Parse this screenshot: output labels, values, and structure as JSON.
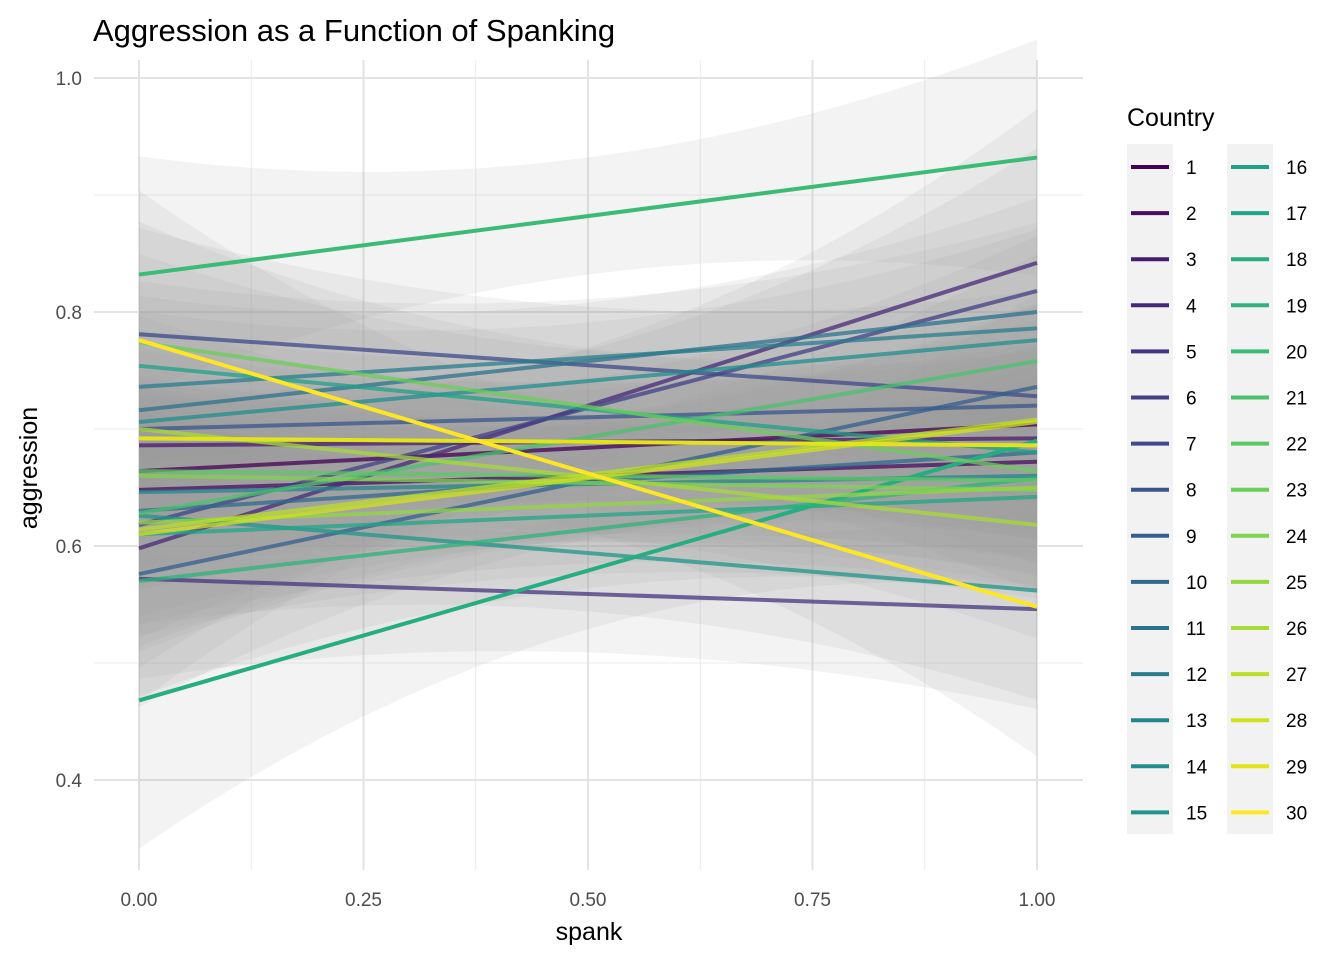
{
  "chart_data": {
    "type": "line",
    "title": "Aggression as a Function of Spanking",
    "xlabel": "spank",
    "ylabel": "aggression",
    "xlim": [
      0,
      1
    ],
    "ylim": [
      0.32,
      1.0
    ],
    "x_ticks": [
      0.0,
      0.25,
      0.5,
      0.75,
      1.0
    ],
    "x_tick_labels": [
      "0.00",
      "0.25",
      "0.50",
      "0.75",
      "1.00"
    ],
    "y_ticks": [
      0.4,
      0.6,
      0.8,
      1.0
    ],
    "y_tick_labels": [
      "0.4",
      "0.6",
      "0.8",
      "1.0"
    ],
    "grid": true,
    "legend": {
      "title": "Country",
      "placement": "right",
      "columns": 2
    },
    "confidence_bands": true,
    "series": [
      {
        "name": "1",
        "color": "#440154",
        "y_start": 0.664,
        "y_end": 0.704
      },
      {
        "name": "2",
        "color": "#470E61",
        "y_start": 0.648,
        "y_end": 0.672
      },
      {
        "name": "3",
        "color": "#481B6D",
        "y_start": 0.686,
        "y_end": 0.692
      },
      {
        "name": "4",
        "color": "#472877",
        "y_start": 0.598,
        "y_end": 0.842
      },
      {
        "name": "5",
        "color": "#45347F",
        "y_start": 0.572,
        "y_end": 0.546
      },
      {
        "name": "6",
        "color": "#424086",
        "y_start": 0.618,
        "y_end": 0.818
      },
      {
        "name": "7",
        "color": "#3E4A89",
        "y_start": 0.781,
        "y_end": 0.728
      },
      {
        "name": "8",
        "color": "#39558C",
        "y_start": 0.7,
        "y_end": 0.72
      },
      {
        "name": "9",
        "color": "#345F8D",
        "y_start": 0.576,
        "y_end": 0.736
      },
      {
        "name": "10",
        "color": "#30698E",
        "y_start": 0.63,
        "y_end": 0.68
      },
      {
        "name": "11",
        "color": "#2C728E",
        "y_start": 0.716,
        "y_end": 0.8
      },
      {
        "name": "12",
        "color": "#287C8E",
        "y_start": 0.736,
        "y_end": 0.786
      },
      {
        "name": "13",
        "color": "#25858E",
        "y_start": 0.646,
        "y_end": 0.66
      },
      {
        "name": "14",
        "color": "#228D8D",
        "y_start": 0.706,
        "y_end": 0.776
      },
      {
        "name": "15",
        "color": "#1F968B",
        "y_start": 0.626,
        "y_end": 0.562
      },
      {
        "name": "16",
        "color": "#1FA088",
        "y_start": 0.754,
        "y_end": 0.68
      },
      {
        "name": "17",
        "color": "#21A685",
        "y_start": 0.61,
        "y_end": 0.642
      },
      {
        "name": "18",
        "color": "#26AD81",
        "y_start": 0.468,
        "y_end": 0.69
      },
      {
        "name": "19",
        "color": "#2EB37C",
        "y_start": 0.57,
        "y_end": 0.658
      },
      {
        "name": "20",
        "color": "#3BBB75",
        "y_start": 0.832,
        "y_end": 0.932
      },
      {
        "name": "21",
        "color": "#4AC16D",
        "y_start": 0.628,
        "y_end": 0.758
      },
      {
        "name": "22",
        "color": "#5BC863",
        "y_start": 0.664,
        "y_end": 0.656
      },
      {
        "name": "23",
        "color": "#6CCD5A",
        "y_start": 0.774,
        "y_end": 0.664
      },
      {
        "name": "24",
        "color": "#7FD34E",
        "y_start": 0.66,
        "y_end": 0.648
      },
      {
        "name": "25",
        "color": "#93D741",
        "y_start": 0.62,
        "y_end": 0.65
      },
      {
        "name": "26",
        "color": "#A8DB34",
        "y_start": 0.7,
        "y_end": 0.618
      },
      {
        "name": "27",
        "color": "#BBDF27",
        "y_start": 0.614,
        "y_end": 0.708
      },
      {
        "name": "28",
        "color": "#D0E11C",
        "y_start": 0.61,
        "y_end": 0.706
      },
      {
        "name": "29",
        "color": "#E3E418",
        "y_start": 0.692,
        "y_end": 0.686
      },
      {
        "name": "30",
        "color": "#FDE725",
        "y_start": 0.776,
        "y_end": 0.548
      }
    ]
  }
}
